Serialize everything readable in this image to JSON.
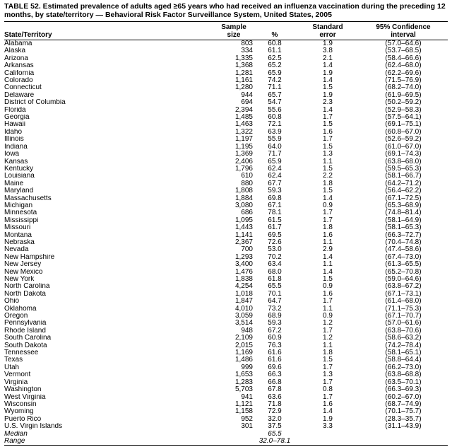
{
  "title": "TABLE 52. Estimated prevalence of adults aged ≥65 years who had received an influenza vaccination during the preceding 12 months, by state/territory — Behavioral Risk Factor Surveillance System, United States, 2005",
  "columns": {
    "state": "State/Territory",
    "sample_line1": "Sample",
    "sample_line2": "size",
    "pct": "%",
    "se_line1": "Standard",
    "se_line2": "error",
    "ci_line1": "95% Confidence",
    "ci_line2": "interval"
  },
  "rows": [
    {
      "state": "Alabama",
      "sample": "803",
      "pct": "60.8",
      "se": "1.9",
      "ci": "(57.0–64.6)"
    },
    {
      "state": "Alaska",
      "sample": "334",
      "pct": "61.1",
      "se": "3.8",
      "ci": "(53.7–68.5)"
    },
    {
      "state": "Arizona",
      "sample": "1,335",
      "pct": "62.5",
      "se": "2.1",
      "ci": "(58.4–66.6)"
    },
    {
      "state": "Arkansas",
      "sample": "1,368",
      "pct": "65.2",
      "se": "1.4",
      "ci": "(62.4–68.0)"
    },
    {
      "state": "California",
      "sample": "1,281",
      "pct": "65.9",
      "se": "1.9",
      "ci": "(62.2–69.6)"
    },
    {
      "state": "Colorado",
      "sample": "1,161",
      "pct": "74.2",
      "se": "1.4",
      "ci": "(71.5–76.9)"
    },
    {
      "state": "Connecticut",
      "sample": "1,280",
      "pct": "71.1",
      "se": "1.5",
      "ci": "(68.2–74.0)"
    },
    {
      "state": "Delaware",
      "sample": "944",
      "pct": "65.7",
      "se": "1.9",
      "ci": "(61.9–69.5)"
    },
    {
      "state": "District of Columbia",
      "sample": "694",
      "pct": "54.7",
      "se": "2.3",
      "ci": "(50.2–59.2)"
    },
    {
      "state": "Florida",
      "sample": "2,394",
      "pct": "55.6",
      "se": "1.4",
      "ci": "(52.9–58.3)"
    },
    {
      "state": "Georgia",
      "sample": "1,485",
      "pct": "60.8",
      "se": "1.7",
      "ci": "(57.5–64.1)"
    },
    {
      "state": "Hawaii",
      "sample": "1,463",
      "pct": "72.1",
      "se": "1.5",
      "ci": "(69.1–75.1)"
    },
    {
      "state": "Idaho",
      "sample": "1,322",
      "pct": "63.9",
      "se": "1.6",
      "ci": "(60.8–67.0)"
    },
    {
      "state": "Illinois",
      "sample": "1,197",
      "pct": "55.9",
      "se": "1.7",
      "ci": "(52.6–59.2)"
    },
    {
      "state": "Indiana",
      "sample": "1,195",
      "pct": "64.0",
      "se": "1.5",
      "ci": "(61.0–67.0)"
    },
    {
      "state": "Iowa",
      "sample": "1,369",
      "pct": "71.7",
      "se": "1.3",
      "ci": "(69.1–74.3)"
    },
    {
      "state": "Kansas",
      "sample": "2,406",
      "pct": "65.9",
      "se": "1.1",
      "ci": "(63.8–68.0)"
    },
    {
      "state": "Kentucky",
      "sample": "1,796",
      "pct": "62.4",
      "se": "1.5",
      "ci": "(59.5–65.3)"
    },
    {
      "state": "Louisiana",
      "sample": "610",
      "pct": "62.4",
      "se": "2.2",
      "ci": "(58.1–66.7)"
    },
    {
      "state": "Maine",
      "sample": "880",
      "pct": "67.7",
      "se": "1.8",
      "ci": "(64.2–71.2)"
    },
    {
      "state": "Maryland",
      "sample": "1,808",
      "pct": "59.3",
      "se": "1.5",
      "ci": "(56.4–62.2)"
    },
    {
      "state": "Massachusetts",
      "sample": "1,884",
      "pct": "69.8",
      "se": "1.4",
      "ci": "(67.1–72.5)"
    },
    {
      "state": "Michigan",
      "sample": "3,080",
      "pct": "67.1",
      "se": "0.9",
      "ci": "(65.3–68.9)"
    },
    {
      "state": "Minnesota",
      "sample": "686",
      "pct": "78.1",
      "se": "1.7",
      "ci": "(74.8–81.4)"
    },
    {
      "state": "Mississippi",
      "sample": "1,095",
      "pct": "61.5",
      "se": "1.7",
      "ci": "(58.1–64.9)"
    },
    {
      "state": "Missouri",
      "sample": "1,443",
      "pct": "61.7",
      "se": "1.8",
      "ci": "(58.1–65.3)"
    },
    {
      "state": "Montana",
      "sample": "1,141",
      "pct": "69.5",
      "se": "1.6",
      "ci": "(66.3–72.7)"
    },
    {
      "state": "Nebraska",
      "sample": "2,367",
      "pct": "72.6",
      "se": "1.1",
      "ci": "(70.4–74.8)"
    },
    {
      "state": "Nevada",
      "sample": "700",
      "pct": "53.0",
      "se": "2.9",
      "ci": "(47.4–58.6)"
    },
    {
      "state": "New Hampshire",
      "sample": "1,293",
      "pct": "70.2",
      "se": "1.4",
      "ci": "(67.4–73.0)"
    },
    {
      "state": "New Jersey",
      "sample": "3,400",
      "pct": "63.4",
      "se": "1.1",
      "ci": "(61.3–65.5)"
    },
    {
      "state": "New Mexico",
      "sample": "1,476",
      "pct": "68.0",
      "se": "1.4",
      "ci": "(65.2–70.8)"
    },
    {
      "state": "New York",
      "sample": "1,838",
      "pct": "61.8",
      "se": "1.5",
      "ci": "(59.0–64.6)"
    },
    {
      "state": "North Carolina",
      "sample": "4,254",
      "pct": "65.5",
      "se": "0.9",
      "ci": "(63.8–67.2)"
    },
    {
      "state": "North Dakota",
      "sample": "1,018",
      "pct": "70.1",
      "se": "1.6",
      "ci": "(67.1–73.1)"
    },
    {
      "state": "Ohio",
      "sample": "1,847",
      "pct": "64.7",
      "se": "1.7",
      "ci": "(61.4–68.0)"
    },
    {
      "state": "Oklahoma",
      "sample": "4,010",
      "pct": "73.2",
      "se": "1.1",
      "ci": "(71.1–75.3)"
    },
    {
      "state": "Oregon",
      "sample": "3,059",
      "pct": "68.9",
      "se": "0.9",
      "ci": "(67.1–70.7)"
    },
    {
      "state": "Pennsylvania",
      "sample": "3,514",
      "pct": "59.3",
      "se": "1.2",
      "ci": "(57.0–61.6)"
    },
    {
      "state": "Rhode Island",
      "sample": "948",
      "pct": "67.2",
      "se": "1.7",
      "ci": "(63.8–70.6)"
    },
    {
      "state": "South Carolina",
      "sample": "2,109",
      "pct": "60.9",
      "se": "1.2",
      "ci": "(58.6–63.2)"
    },
    {
      "state": "South Dakota",
      "sample": "2,015",
      "pct": "76.3",
      "se": "1.1",
      "ci": "(74.2–78.4)"
    },
    {
      "state": "Tennessee",
      "sample": "1,169",
      "pct": "61.6",
      "se": "1.8",
      "ci": "(58.1–65.1)"
    },
    {
      "state": "Texas",
      "sample": "1,486",
      "pct": "61.6",
      "se": "1.5",
      "ci": "(58.8–64.4)"
    },
    {
      "state": "Utah",
      "sample": "999",
      "pct": "69.6",
      "se": "1.7",
      "ci": "(66.2–73.0)"
    },
    {
      "state": "Vermont",
      "sample": "1,653",
      "pct": "66.3",
      "se": "1.3",
      "ci": "(63.8–68.8)"
    },
    {
      "state": "Virginia",
      "sample": "1,283",
      "pct": "66.8",
      "se": "1.7",
      "ci": "(63.5–70.1)"
    },
    {
      "state": "Washington",
      "sample": "5,703",
      "pct": "67.8",
      "se": "0.8",
      "ci": "(66.3–69.3)"
    },
    {
      "state": "West Virginia",
      "sample": "941",
      "pct": "63.6",
      "se": "1.7",
      "ci": "(60.2–67.0)"
    },
    {
      "state": "Wisconsin",
      "sample": "1,121",
      "pct": "71.8",
      "se": "1.6",
      "ci": "(68.7–74.9)"
    },
    {
      "state": "Wyoming",
      "sample": "1,158",
      "pct": "72.9",
      "se": "1.4",
      "ci": "(70.1–75.7)"
    },
    {
      "state": "Puerto Rico",
      "sample": "952",
      "pct": "32.0",
      "se": "1.9",
      "ci": "(28.3–35.7)"
    },
    {
      "state": "U.S. Virgin Islands",
      "sample": "301",
      "pct": "37.5",
      "se": "3.3",
      "ci": "(31.1–43.9)"
    },
    {
      "state": "Median",
      "sample": "",
      "pct": "65.5",
      "se": "",
      "ci": "",
      "italic": true
    },
    {
      "state": "Range",
      "sample": "",
      "pct": "32.0–78.1",
      "se": "",
      "ci": "",
      "italic": true
    }
  ]
}
